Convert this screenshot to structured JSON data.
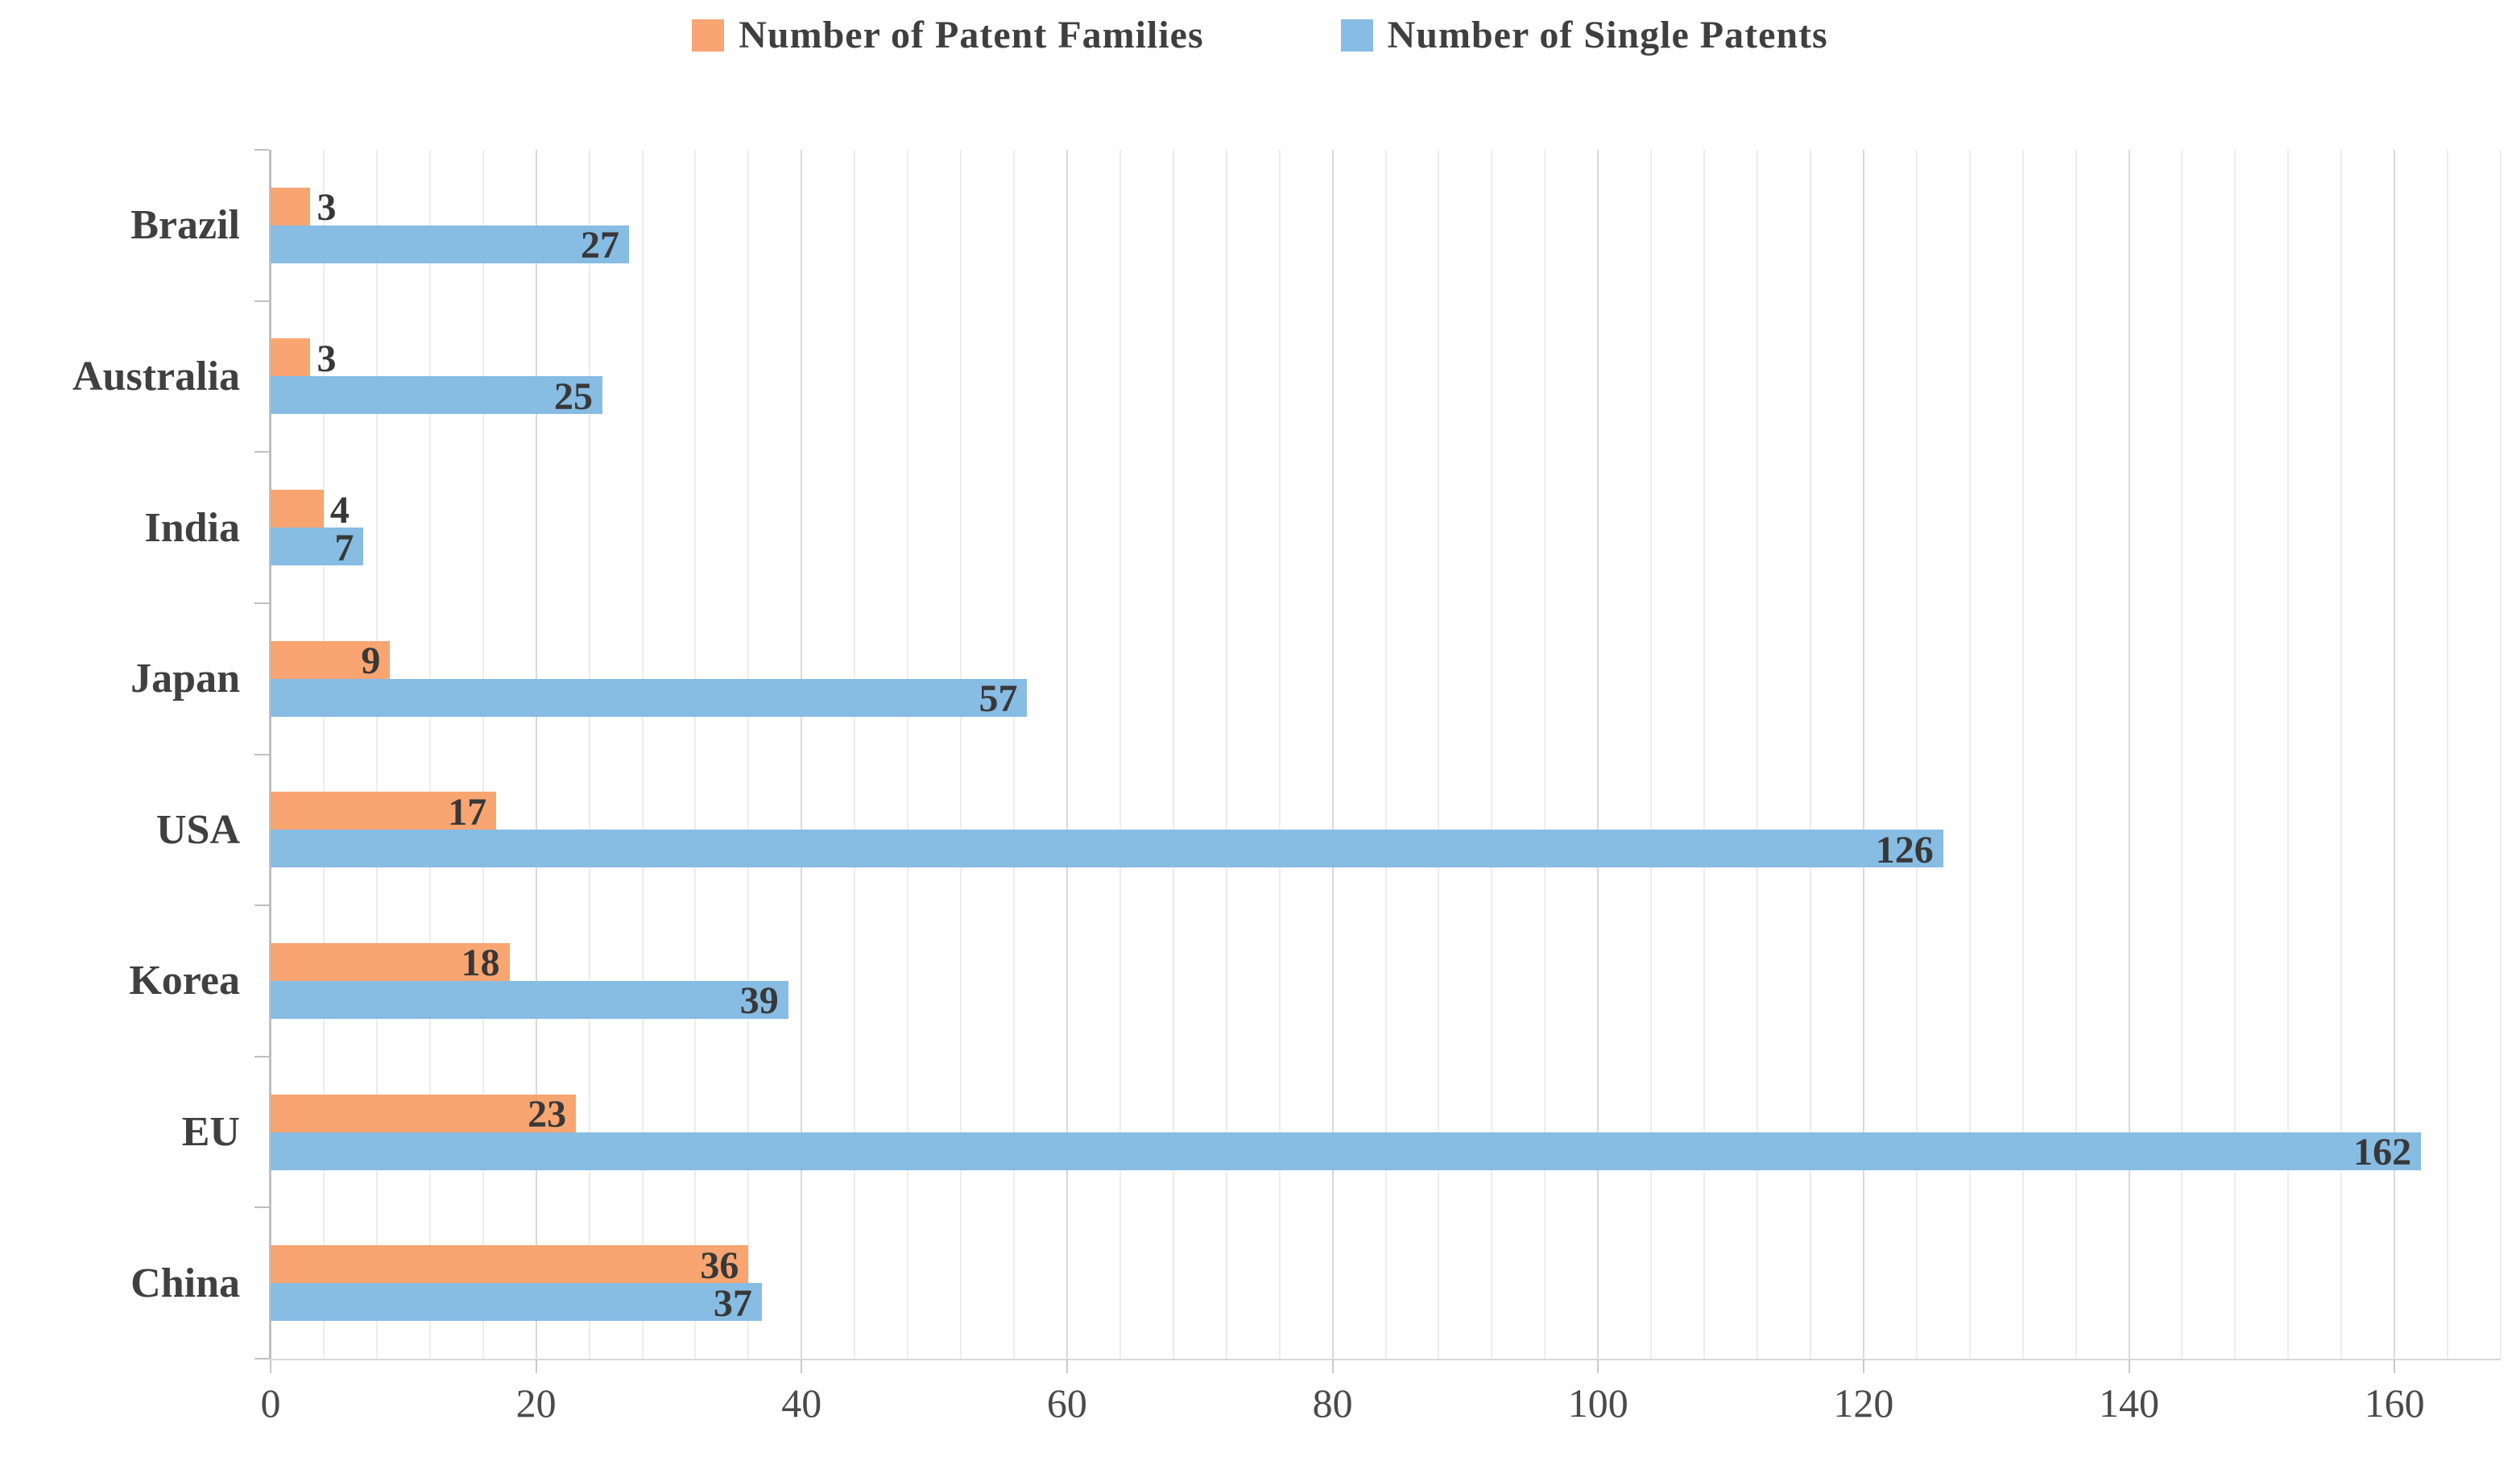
{
  "chart_data": {
    "type": "bar",
    "orientation": "horizontal",
    "title": "",
    "xlabel": "",
    "ylabel": "",
    "categories": [
      "Brazil",
      "Australia",
      "India",
      "Japan",
      "USA",
      "Korea",
      "EU",
      "China"
    ],
    "series": [
      {
        "name": "Number of Patent Families",
        "color": "#F8A572",
        "values": [
          3,
          3,
          4,
          9,
          17,
          18,
          23,
          36
        ]
      },
      {
        "name": "Number of Single Patents",
        "color": "#87BCE3",
        "values": [
          27,
          25,
          7,
          57,
          126,
          39,
          162,
          37
        ]
      }
    ],
    "xlim": [
      0,
      168
    ],
    "x_ticks": [
      0,
      20,
      40,
      60,
      80,
      100,
      120,
      140,
      160
    ],
    "minor_grid_unit": 4,
    "major_grid_unit": 20,
    "grid": true,
    "legend_position": "top-center",
    "data_labels": true
  },
  "colors": {
    "background": "#ffffff",
    "minor_gridline": "#ededed",
    "major_gridline": "#d9d9d9",
    "axis_line": "#bfbfbf",
    "text": "#3f3f3f",
    "data_label": "#383838"
  }
}
